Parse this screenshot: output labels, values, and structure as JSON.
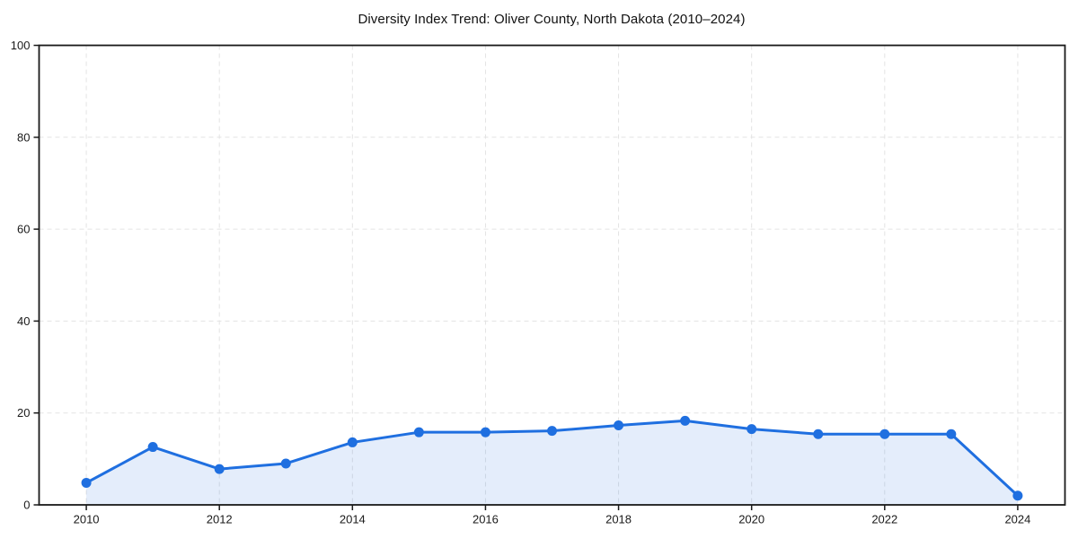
{
  "page": {
    "background": "#ffffff"
  },
  "chart_data": {
    "type": "area",
    "title": "Diversity Index Trend: Oliver County, North Dakota (2010–2024)",
    "xlabel": "",
    "ylabel": "",
    "x": [
      2010,
      2011,
      2012,
      2013,
      2014,
      2015,
      2016,
      2017,
      2018,
      2019,
      2020,
      2021,
      2022,
      2023,
      2024
    ],
    "values": [
      4.8,
      12.6,
      7.8,
      9.0,
      13.6,
      15.8,
      15.8,
      16.1,
      17.3,
      18.3,
      16.5,
      15.4,
      15.4,
      15.4,
      2.0
    ],
    "xlim": [
      2009.29,
      2024.71
    ],
    "ylim": [
      0,
      100
    ],
    "x_ticks": [
      2010,
      2012,
      2014,
      2016,
      2018,
      2020,
      2022,
      2024
    ],
    "y_ticks": [
      0,
      20,
      40,
      60,
      80,
      100
    ],
    "grid": true,
    "grid_style": "dashed",
    "legend": false,
    "marker": "circle",
    "colors": {
      "line": "#1f6fe0",
      "fill": "#1f6fe0",
      "fill_opacity": 0.12,
      "grid": "#e3e3e3",
      "axis": "#1a1a1a",
      "text": "#1a1a1a",
      "background": "#ffffff"
    }
  }
}
